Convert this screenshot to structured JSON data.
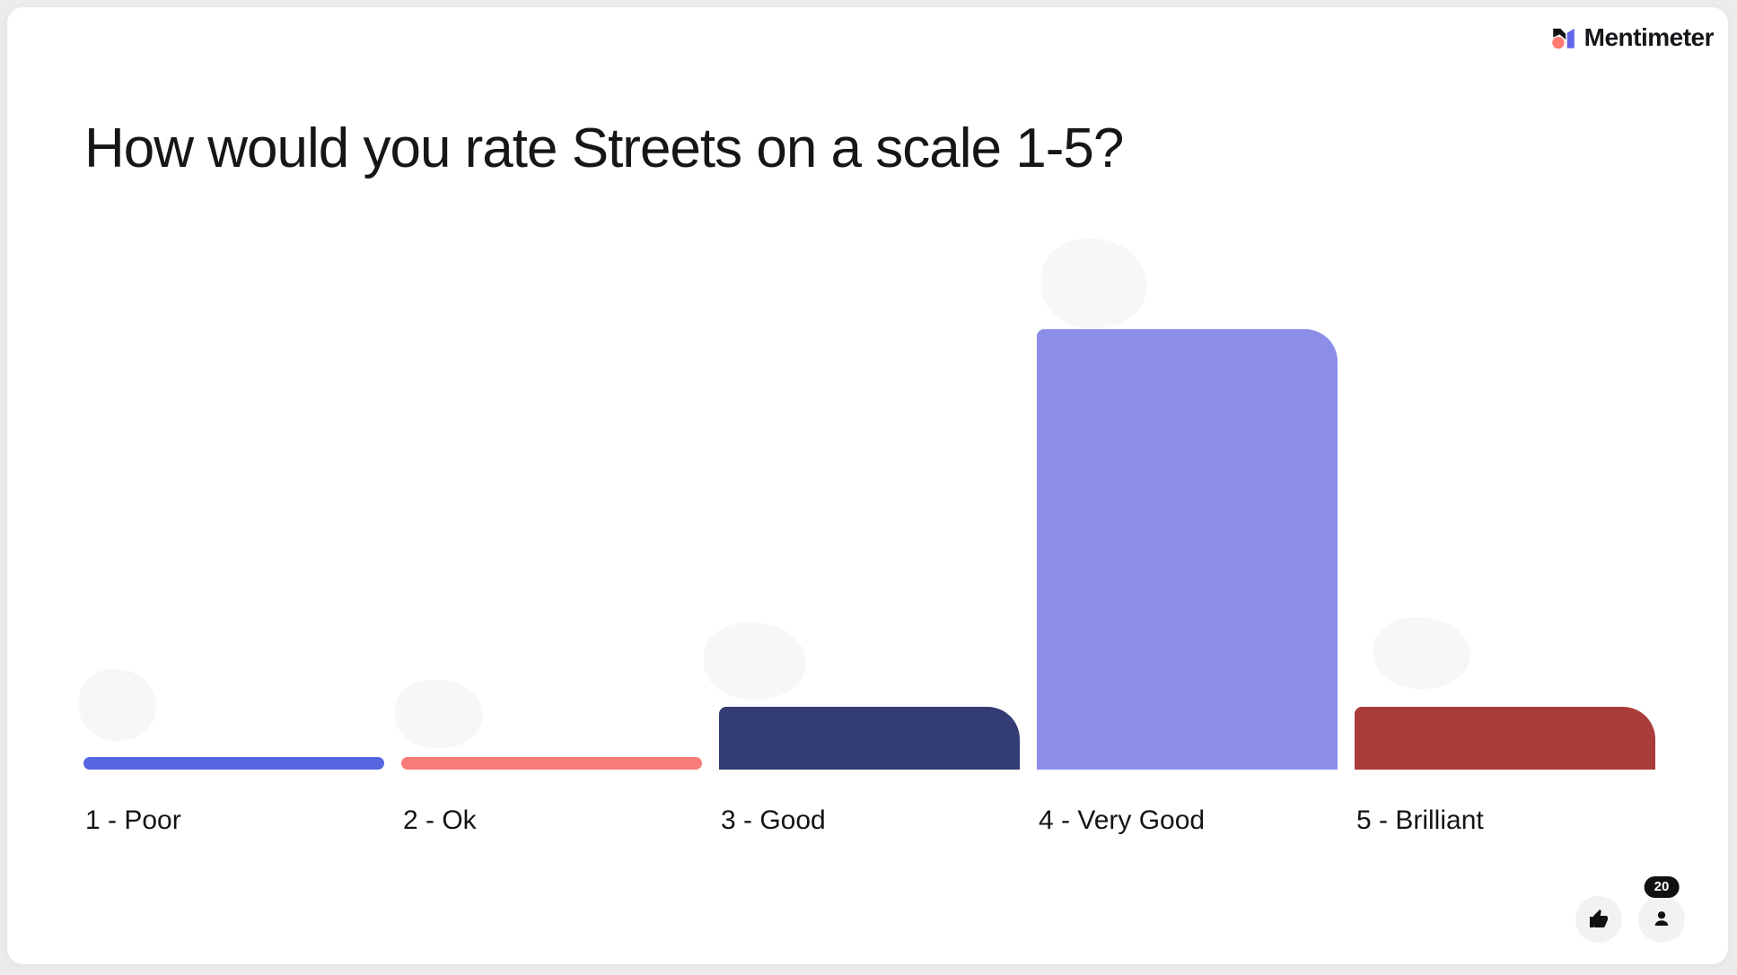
{
  "brand": {
    "name": "Mentimeter",
    "logo_colors": {
      "black": "#111111",
      "coral": "#FF7A70",
      "blue": "#6266E6"
    }
  },
  "question": {
    "title": "How would you rate Streets on a scale 1-5?"
  },
  "chart_data": {
    "type": "bar",
    "title": "How would you rate Streets on a scale 1-5?",
    "categories": [
      "1 - Poor",
      "2 - Ok",
      "3 - Good",
      "4 - Very Good",
      "5 - Brilliant"
    ],
    "values": [
      0,
      0,
      2,
      14,
      2
    ],
    "colors": [
      "#5765E1",
      "#F87C77",
      "#343C74",
      "#8C8EE9",
      "#AA3D39"
    ],
    "xlabel": "",
    "ylabel": "",
    "ylim": [
      0,
      14
    ],
    "grid": false,
    "legend": "none",
    "value_labels_shown": false,
    "zero_value_style": "thin pill bar"
  },
  "footer": {
    "participants_count": "20"
  },
  "page_colors": {
    "background": "#ececec",
    "card": "#ffffff",
    "text": "#161616"
  }
}
